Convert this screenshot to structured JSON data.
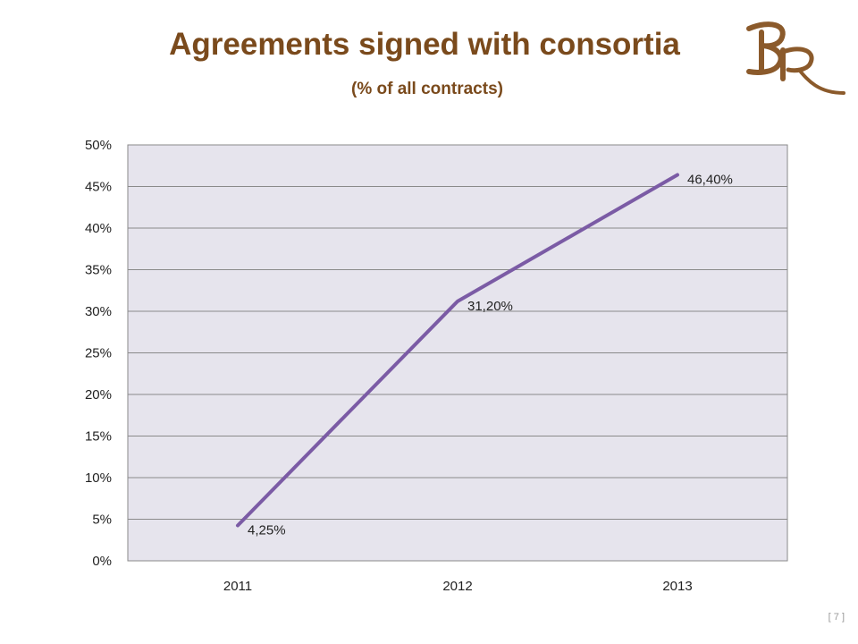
{
  "header": {
    "title": "Agreements signed with consortia",
    "subtitle": "(% of all contracts)"
  },
  "logo": {
    "icon": "br-monogram-logo",
    "color": "#8b5a2b"
  },
  "page": {
    "number": "[ 7 ]"
  },
  "colors": {
    "title": "#7a4a1c",
    "line": "#7b5ba5",
    "plot_background": "#e6e4ed",
    "gridline": "#8a8a8a"
  },
  "chart_data": {
    "type": "line",
    "categories": [
      "2011",
      "2012",
      "2013"
    ],
    "series": [
      {
        "values": [
          4.25,
          31.2,
          46.4
        ],
        "labels": [
          "4,25%",
          "31,20%",
          "46,40%"
        ]
      }
    ],
    "ylim": [
      0,
      50
    ],
    "yticks": [
      0,
      5,
      10,
      15,
      20,
      25,
      30,
      35,
      40,
      45,
      50
    ],
    "ytick_labels": [
      "0%",
      "5%",
      "10%",
      "15%",
      "20%",
      "25%",
      "30%",
      "35%",
      "40%",
      "45%",
      "50%"
    ],
    "grid": true,
    "legend": "none"
  }
}
